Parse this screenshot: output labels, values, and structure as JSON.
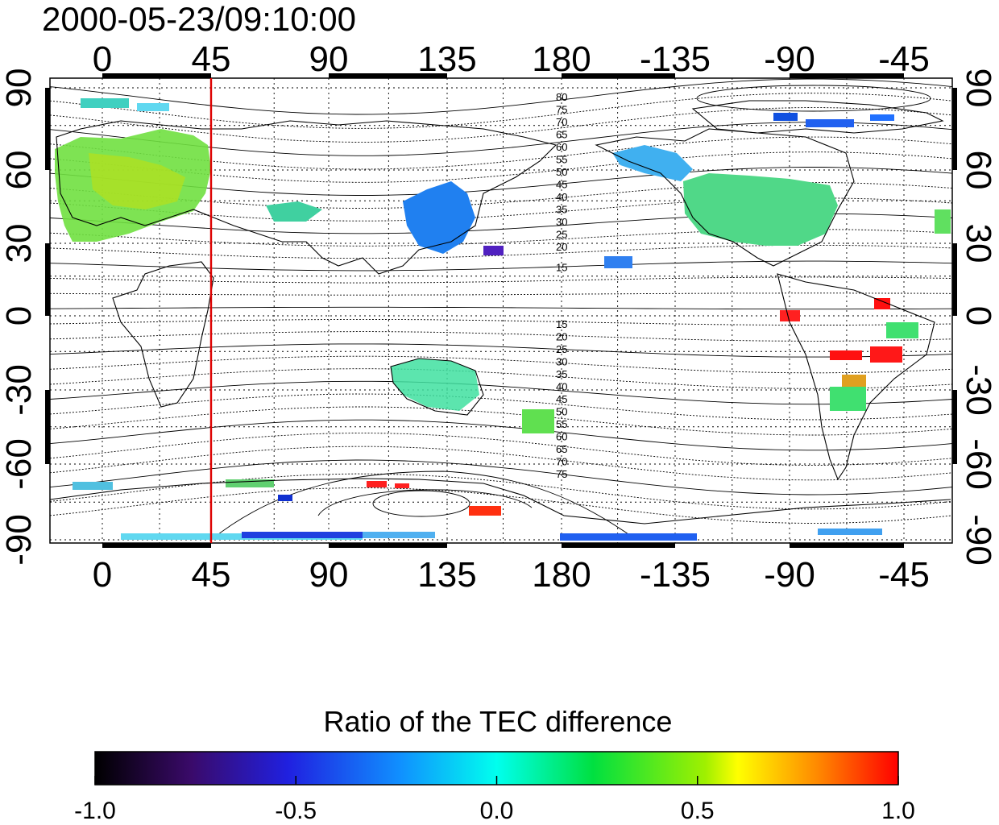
{
  "title": "2000-05-23/09:10:00",
  "map": {
    "top_axis_labels": [
      "0",
      "45",
      "90",
      "135",
      "180",
      "-135",
      "-90",
      "-45"
    ],
    "bottom_axis_labels": [
      "0",
      "45",
      "90",
      "135",
      "180",
      "-135",
      "-90",
      "-45"
    ],
    "left_axis_labels": [
      "90",
      "60",
      "30",
      "0",
      "-30",
      "-60",
      "-90"
    ],
    "right_axis_labels": [
      "90",
      "60",
      "30",
      "0",
      "-30",
      "-60",
      "-90"
    ],
    "marker_longitude_label": "45",
    "north_contour_labels": [
      "80",
      "75",
      "70",
      "65",
      "60",
      "55",
      "50",
      "45",
      "40",
      "35",
      "30",
      "25",
      "20",
      "15"
    ],
    "south_contour_labels": [
      "15",
      "20",
      "25",
      "30",
      "35",
      "40",
      "45",
      "50",
      "55",
      "60",
      "65",
      "70",
      "75"
    ],
    "marker_color": "#dd0000"
  },
  "colorbar": {
    "title": "Ratio of the TEC difference",
    "tick_labels": [
      "-1.0",
      "-0.5",
      "0.0",
      "0.5",
      "1.0"
    ],
    "range": [
      -1.0,
      1.0
    ]
  }
}
